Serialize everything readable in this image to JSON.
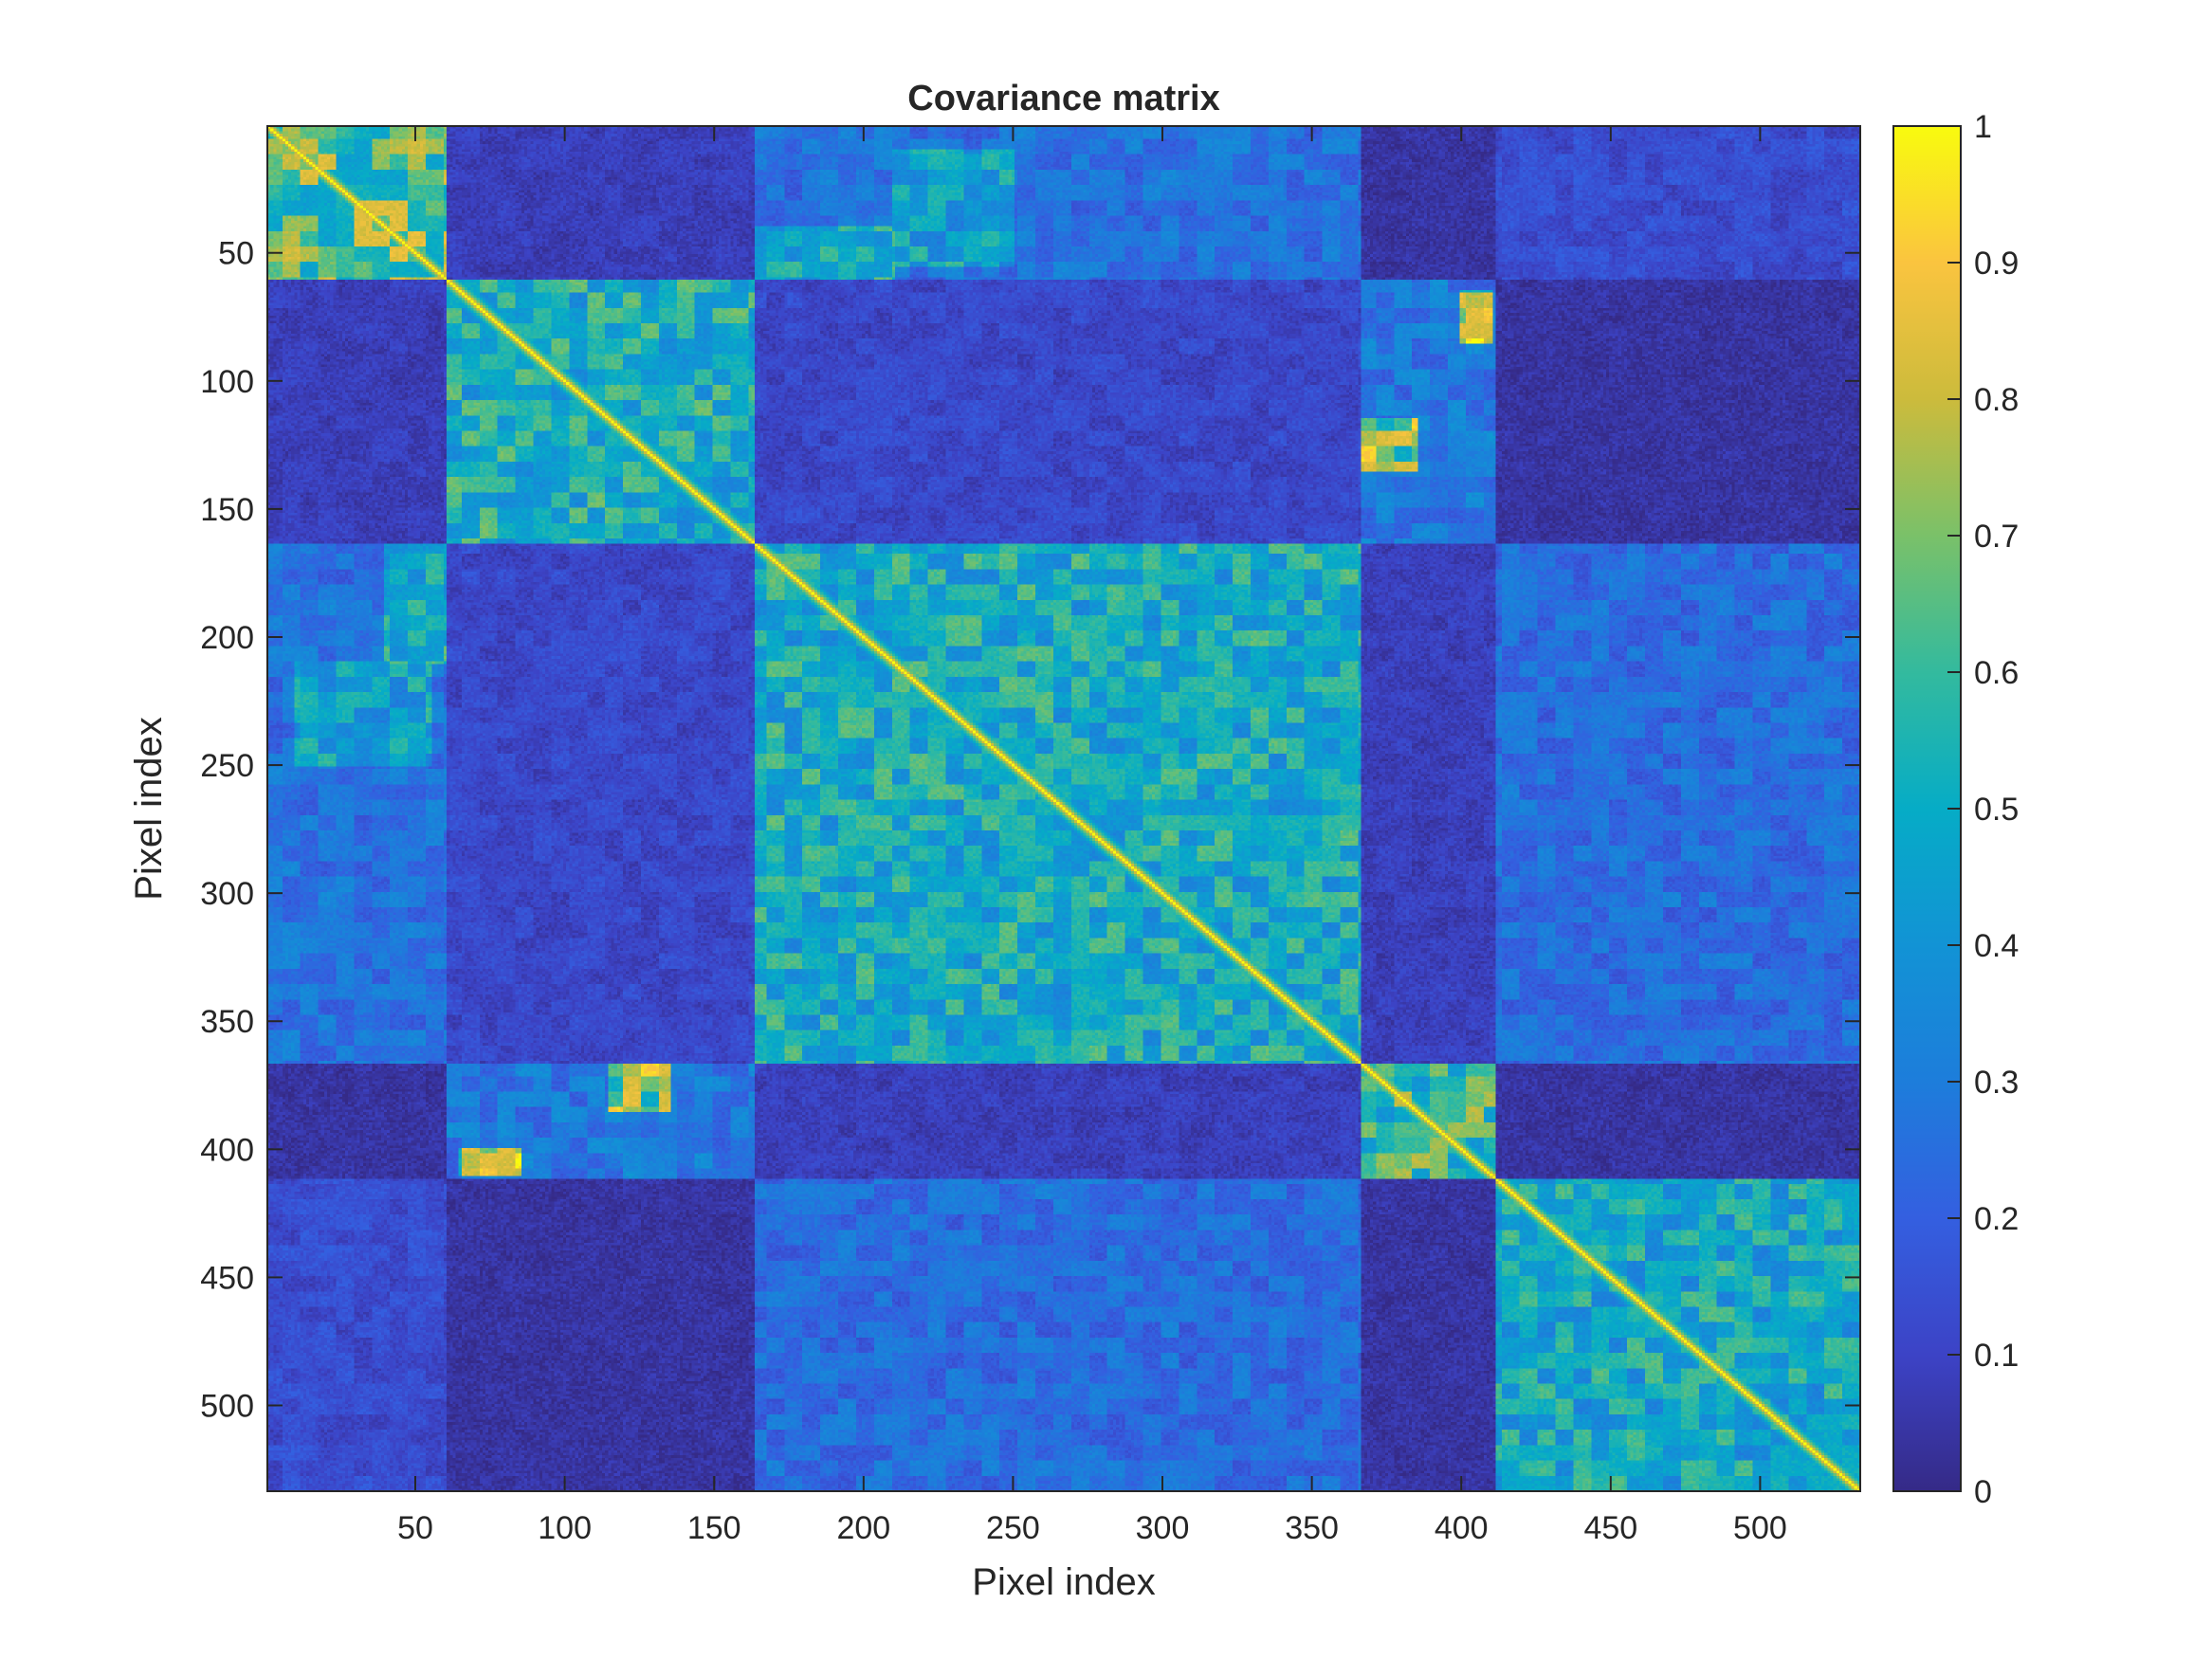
{
  "chart_data": {
    "type": "heatmap",
    "title": "Covariance matrix",
    "xlabel": "Pixel index",
    "ylabel": "Pixel index",
    "xlim": [
      0.5,
      533.5
    ],
    "ylim": [
      0.5,
      533.5
    ],
    "y_direction": "reverse",
    "grid": false,
    "colormap": "parula",
    "color_range": [
      0,
      1
    ],
    "xticks": [
      50,
      100,
      150,
      200,
      250,
      300,
      350,
      400,
      450,
      500
    ],
    "yticks": [
      50,
      100,
      150,
      200,
      250,
      300,
      350,
      400,
      450,
      500
    ],
    "xtick_labels": [
      "50",
      "100",
      "150",
      "200",
      "250",
      "300",
      "350",
      "400",
      "450",
      "500"
    ],
    "ytick_labels": [
      "50",
      "100",
      "150",
      "200",
      "250",
      "300",
      "350",
      "400",
      "450",
      "500"
    ],
    "colorbar": {
      "placement": "right",
      "ticks": [
        0,
        0.1,
        0.2,
        0.3,
        0.4,
        0.5,
        0.6,
        0.7,
        0.8,
        0.9,
        1
      ],
      "tick_labels": [
        "0",
        "0.1",
        "0.2",
        "0.3",
        "0.4",
        "0.5",
        "0.6",
        "0.7",
        "0.8",
        "0.9",
        "1"
      ]
    },
    "diagonal_value": 1,
    "background_value": 0.05,
    "block_ranges": [
      [
        1,
        60
      ],
      [
        61,
        163
      ],
      [
        164,
        366
      ],
      [
        367,
        411
      ],
      [
        412,
        533
      ]
    ],
    "blocks": [
      {
        "x": [
          1,
          60
        ],
        "y": [
          1,
          60
        ],
        "value": 0.78
      },
      {
        "x": [
          61,
          163
        ],
        "y": [
          61,
          163
        ],
        "value": 0.62
      },
      {
        "x": [
          164,
          366
        ],
        "y": [
          164,
          366
        ],
        "value": 0.6
      },
      {
        "x": [
          367,
          411
        ],
        "y": [
          367,
          411
        ],
        "value": 0.72
      },
      {
        "x": [
          412,
          533
        ],
        "y": [
          412,
          533
        ],
        "value": 0.58
      },
      {
        "x": [
          164,
          366
        ],
        "y": [
          1,
          60
        ],
        "value": 0.32
      },
      {
        "x": [
          1,
          60
        ],
        "y": [
          164,
          366
        ],
        "value": 0.32
      },
      {
        "x": [
          164,
          210
        ],
        "y": [
          40,
          60
        ],
        "value": 0.6
      },
      {
        "x": [
          40,
          60
        ],
        "y": [
          164,
          210
        ],
        "value": 0.6
      },
      {
        "x": [
          210,
          250
        ],
        "y": [
          10,
          55
        ],
        "value": 0.55
      },
      {
        "x": [
          10,
          55
        ],
        "y": [
          210,
          250
        ],
        "value": 0.55
      },
      {
        "x": [
          367,
          411
        ],
        "y": [
          61,
          163
        ],
        "value": 0.35
      },
      {
        "x": [
          61,
          163
        ],
        "y": [
          367,
          411
        ],
        "value": 0.35
      },
      {
        "x": [
          367,
          385
        ],
        "y": [
          115,
          135
        ],
        "value": 0.85
      },
      {
        "x": [
          115,
          135
        ],
        "y": [
          367,
          385
        ],
        "value": 0.85
      },
      {
        "x": [
          400,
          410
        ],
        "y": [
          65,
          85
        ],
        "value": 0.9
      },
      {
        "x": [
          65,
          85
        ],
        "y": [
          400,
          410
        ],
        "value": 0.9
      },
      {
        "x": [
          412,
          533
        ],
        "y": [
          164,
          366
        ],
        "value": 0.3
      },
      {
        "x": [
          164,
          366
        ],
        "y": [
          412,
          533
        ],
        "value": 0.3
      },
      {
        "x": [
          164,
          366
        ],
        "y": [
          61,
          163
        ],
        "value": 0.14
      },
      {
        "x": [
          61,
          163
        ],
        "y": [
          164,
          366
        ],
        "value": 0.14
      },
      {
        "x": [
          61,
          163
        ],
        "y": [
          1,
          60
        ],
        "value": 0.1
      },
      {
        "x": [
          1,
          60
        ],
        "y": [
          61,
          163
        ],
        "value": 0.1
      },
      {
        "x": [
          412,
          533
        ],
        "y": [
          1,
          60
        ],
        "value": 0.16
      },
      {
        "x": [
          1,
          60
        ],
        "y": [
          412,
          533
        ],
        "value": 0.16
      },
      {
        "x": [
          367,
          411
        ],
        "y": [
          164,
          366
        ],
        "value": 0.1
      },
      {
        "x": [
          164,
          366
        ],
        "y": [
          367,
          411
        ],
        "value": 0.1
      }
    ]
  }
}
